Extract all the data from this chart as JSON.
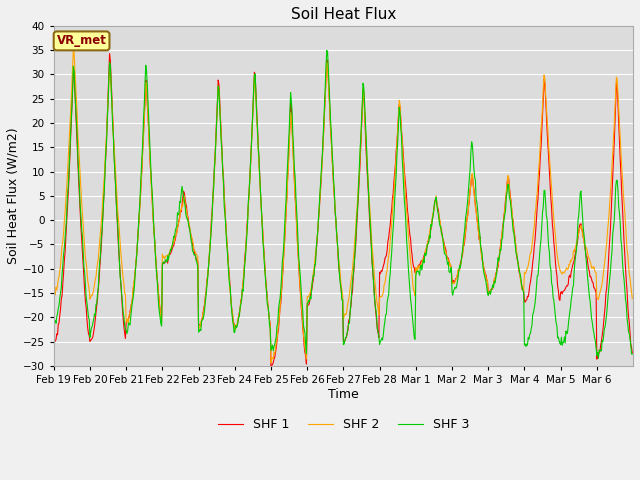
{
  "title": "Soil Heat Flux",
  "xlabel": "Time",
  "ylabel": "Soil Heat Flux (W/m2)",
  "ylim": [
    -30,
    40
  ],
  "yticks": [
    -30,
    -25,
    -20,
    -15,
    -10,
    -5,
    0,
    5,
    10,
    15,
    20,
    25,
    30,
    35,
    40
  ],
  "colors": {
    "SHF 1": "#ff0000",
    "SHF 2": "#ffa500",
    "SHF 3": "#00cc00"
  },
  "legend_labels": [
    "SHF 1",
    "SHF 2",
    "SHF 3"
  ],
  "vr_met_label": "VR_met",
  "plot_bg_color": "#dcdcdc",
  "fig_bg_color": "#f0f0f0",
  "grid_color": "#ffffff",
  "tick_labels": [
    "Feb 19",
    "Feb 20",
    "Feb 21",
    "Feb 22",
    "Feb 23",
    "Feb 24",
    "Feb 25",
    "Feb 26",
    "Feb 27",
    "Feb 28",
    "Mar 1",
    "Mar 2",
    "Mar 3",
    "Mar 4",
    "Mar 5",
    "Mar 6"
  ]
}
